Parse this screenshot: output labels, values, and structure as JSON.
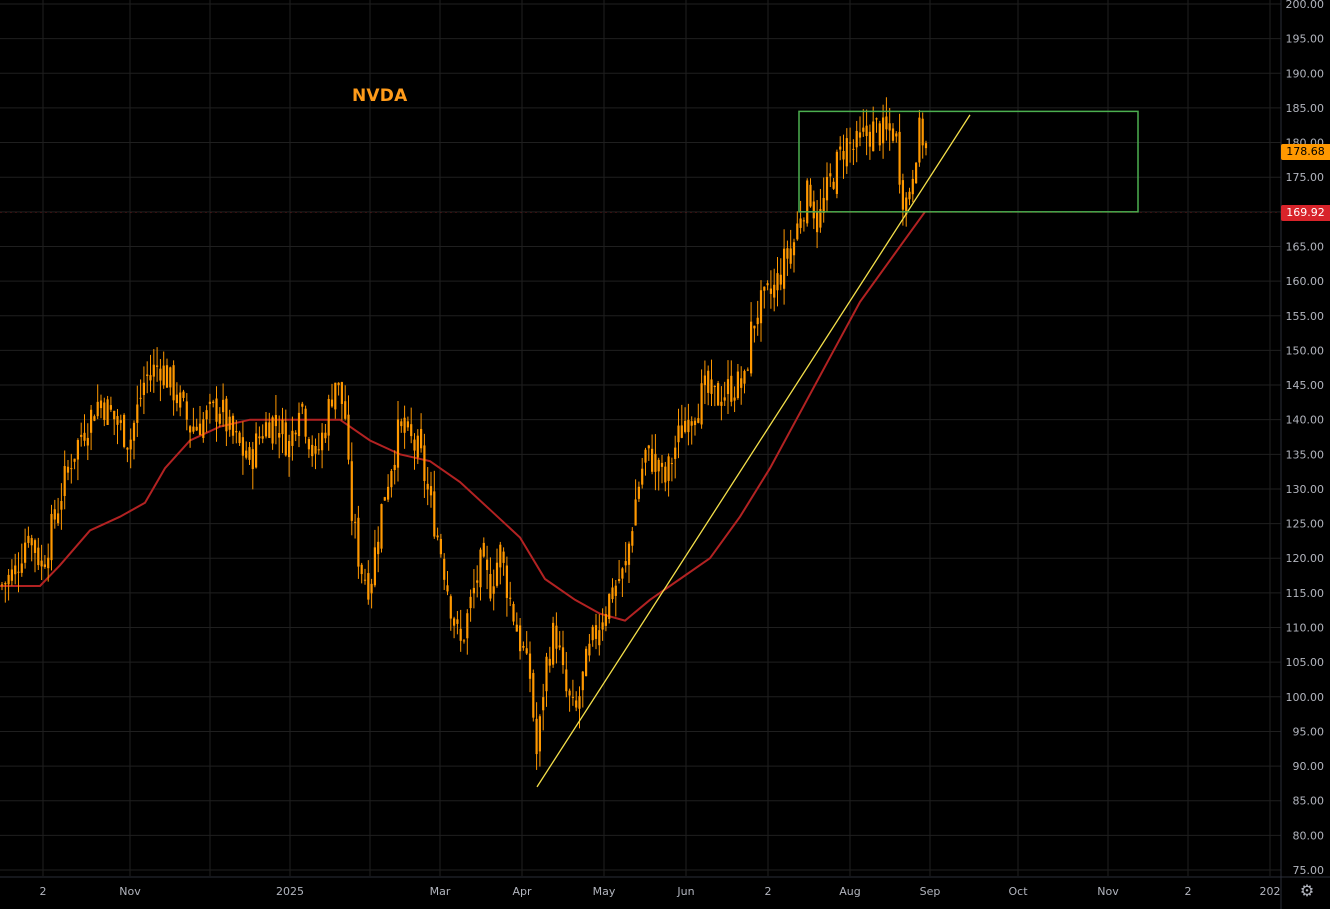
{
  "chart_data": {
    "type": "candlestick",
    "symbol": "NVDA",
    "y_axis": {
      "min": 75,
      "max": 200,
      "ticks": [
        "200.00",
        "195.00",
        "190.00",
        "185.00",
        "180.00",
        "175.00",
        "170.00",
        "165.00",
        "160.00",
        "155.00",
        "150.00",
        "145.00",
        "140.00",
        "135.00",
        "130.00",
        "125.00",
        "120.00",
        "115.00",
        "110.00",
        "105.00",
        "100.00",
        "95.00",
        "90.00",
        "85.00",
        "80.00",
        "75.00"
      ]
    },
    "x_axis": {
      "labels": [
        "2",
        "Nov",
        "2025",
        "Mar",
        "Apr",
        "May",
        "Jun",
        "2",
        "Aug",
        "Sep",
        "Oct",
        "Nov",
        "2",
        "202"
      ]
    },
    "last_price": "178.68",
    "moving_average_value": "169.92",
    "colors": {
      "candle": "#ff9800",
      "moving_average": "#b22222",
      "trendline": "#f5e04a",
      "range_box": "#4caf50",
      "last_price_tag": "#ff9800",
      "ma_tag": "#d8232a",
      "grid": "#1f1f1f",
      "axis_text": "#b2b5be"
    },
    "range_box": {
      "price_low": 170,
      "price_high": 184.5
    },
    "trendline_prices": {
      "start": 87,
      "end": 184
    },
    "price_path": [
      [
        0,
        116
      ],
      [
        15,
        118
      ],
      [
        28,
        124
      ],
      [
        42,
        119
      ],
      [
        55,
        126
      ],
      [
        70,
        134
      ],
      [
        85,
        139
      ],
      [
        100,
        143
      ],
      [
        115,
        140
      ],
      [
        130,
        137
      ],
      [
        145,
        146
      ],
      [
        160,
        148
      ],
      [
        175,
        144
      ],
      [
        190,
        139
      ],
      [
        205,
        140
      ],
      [
        220,
        142
      ],
      [
        230,
        138
      ],
      [
        240,
        136
      ],
      [
        250,
        134
      ],
      [
        260,
        138
      ],
      [
        270,
        140
      ],
      [
        280,
        139
      ],
      [
        290,
        136
      ],
      [
        300,
        144
      ],
      [
        305,
        140
      ],
      [
        315,
        134
      ],
      [
        325,
        139
      ],
      [
        335,
        146
      ],
      [
        345,
        141
      ],
      [
        350,
        128
      ],
      [
        360,
        119
      ],
      [
        370,
        116
      ],
      [
        380,
        126
      ],
      [
        390,
        133
      ],
      [
        400,
        139
      ],
      [
        410,
        137
      ],
      [
        420,
        135
      ],
      [
        430,
        128
      ],
      [
        440,
        122
      ],
      [
        450,
        114
      ],
      [
        460,
        107
      ],
      [
        470,
        113
      ],
      [
        480,
        119
      ],
      [
        490,
        116
      ],
      [
        500,
        121
      ],
      [
        510,
        114
      ],
      [
        520,
        108
      ],
      [
        530,
        103
      ],
      [
        537,
        91
      ],
      [
        545,
        104
      ],
      [
        555,
        110
      ],
      [
        565,
        101
      ],
      [
        575,
        97
      ],
      [
        585,
        104
      ],
      [
        595,
        109
      ],
      [
        605,
        113
      ],
      [
        615,
        116
      ],
      [
        625,
        118
      ],
      [
        635,
        128
      ],
      [
        645,
        135
      ],
      [
        655,
        134
      ],
      [
        665,
        131
      ],
      [
        675,
        136
      ],
      [
        685,
        140
      ],
      [
        695,
        142
      ],
      [
        705,
        144
      ],
      [
        715,
        143
      ],
      [
        725,
        144
      ],
      [
        735,
        145
      ],
      [
        745,
        145
      ],
      [
        750,
        152
      ],
      [
        758,
        156
      ],
      [
        766,
        157
      ],
      [
        775,
        159
      ],
      [
        785,
        163
      ],
      [
        795,
        166
      ],
      [
        800,
        170
      ],
      [
        810,
        173
      ],
      [
        818,
        168
      ],
      [
        825,
        172
      ],
      [
        835,
        176
      ],
      [
        845,
        180
      ],
      [
        855,
        179
      ],
      [
        865,
        181
      ],
      [
        875,
        182
      ],
      [
        885,
        181
      ],
      [
        895,
        182
      ],
      [
        902,
        173
      ],
      [
        908,
        171
      ],
      [
        915,
        179
      ],
      [
        921,
        182
      ],
      [
        927,
        178
      ]
    ],
    "moving_average_path": [
      [
        0,
        116
      ],
      [
        40,
        116
      ],
      [
        60,
        119
      ],
      [
        90,
        124
      ],
      [
        120,
        126
      ],
      [
        145,
        128
      ],
      [
        165,
        133
      ],
      [
        190,
        137
      ],
      [
        220,
        139
      ],
      [
        250,
        140
      ],
      [
        280,
        140
      ],
      [
        310,
        140
      ],
      [
        340,
        140
      ],
      [
        370,
        137
      ],
      [
        400,
        135
      ],
      [
        430,
        134
      ],
      [
        460,
        131
      ],
      [
        490,
        127
      ],
      [
        520,
        123
      ],
      [
        545,
        117
      ],
      [
        575,
        114
      ],
      [
        600,
        112
      ],
      [
        625,
        111
      ],
      [
        650,
        114
      ],
      [
        680,
        117
      ],
      [
        710,
        120
      ],
      [
        740,
        126
      ],
      [
        770,
        133
      ],
      [
        800,
        141
      ],
      [
        830,
        149
      ],
      [
        860,
        157
      ],
      [
        890,
        163
      ],
      [
        910,
        167
      ],
      [
        925,
        170
      ]
    ]
  }
}
